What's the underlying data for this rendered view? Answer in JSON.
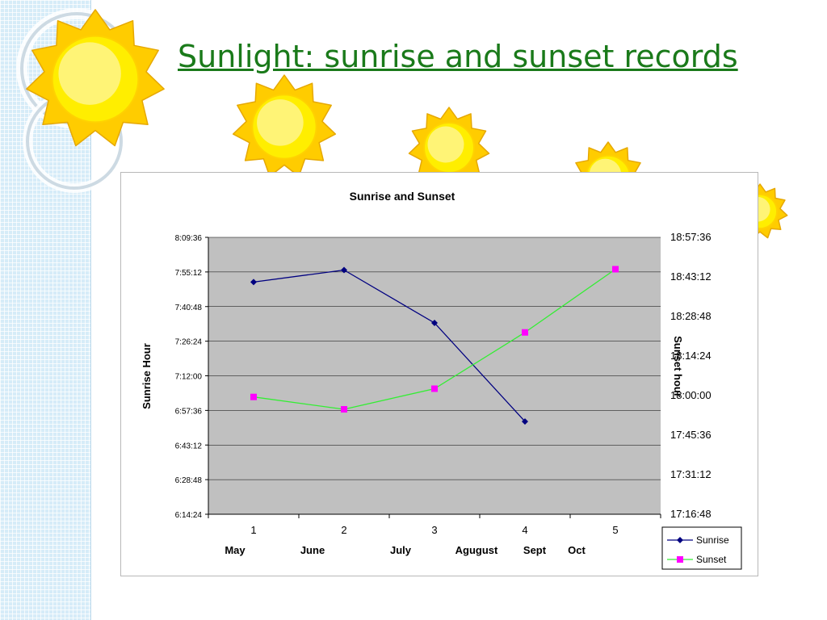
{
  "slide": {
    "title": "Sunlight: sunrise and sunset records"
  },
  "colors": {
    "title": "#1a7a1a",
    "plot_bg": "#c0c0c0",
    "sunrise": "#000080",
    "sunset": "#33ee33",
    "sunset_marker": "#ff00ff",
    "sun_fill": "#ffee00",
    "sun_ray": "#ffcc00"
  },
  "decorations": {
    "sun_icon": "sun-icon",
    "sun_count": 5
  },
  "chart_data": {
    "type": "line",
    "title": "Sunrise and Sunset",
    "x": [
      1,
      2,
      3,
      4,
      5
    ],
    "x_tick_labels": [
      "1",
      "2",
      "3",
      "4",
      "5"
    ],
    "month_labels": [
      "May",
      "June",
      "July",
      "Agugust",
      "Sept",
      "Oct"
    ],
    "y_left": {
      "label": "Sunrise Hour",
      "ticks": [
        "6:14:24",
        "6:28:48",
        "6:43:12",
        "6:57:36",
        "7:12:00",
        "7:26:24",
        "7:40:48",
        "7:55:12",
        "8:09:36"
      ],
      "range": [
        "6:14:24",
        "8:09:36"
      ]
    },
    "y_right": {
      "label": "Sunset hour",
      "ticks": [
        "17:16:48",
        "17:31:12",
        "17:45:36",
        "18:00:00",
        "18:14:24",
        "18:28:48",
        "18:43:12",
        "18:57:36"
      ],
      "range": [
        "17:16:48",
        "18:57:36"
      ]
    },
    "series": [
      {
        "name": "Sunrise",
        "axis": "left",
        "marker": "diamond",
        "x": [
          1,
          2,
          3,
          4
        ],
        "values": [
          "7:51:00",
          "7:56:00",
          "7:34:00",
          "6:53:00"
        ]
      },
      {
        "name": "Sunset",
        "axis": "right",
        "marker": "square",
        "x": [
          1,
          2,
          3,
          4,
          5
        ],
        "values": [
          "17:59:30",
          "17:55:00",
          "18:02:30",
          "18:23:00",
          "18:46:00"
        ]
      }
    ],
    "grid": true,
    "legend_position": "bottom-right"
  }
}
